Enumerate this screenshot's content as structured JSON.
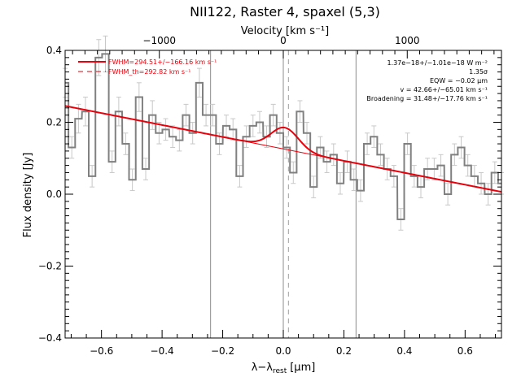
{
  "chart_data": {
    "type": "line",
    "title": "NII122, Raster 4, spaxel (5,3)",
    "xlabel": "λ−λ",
    "xlabel_sub": "rest",
    "xlabel_unit": "[μm]",
    "ylabel": "Flux density [Jy]",
    "top_axis_label": "Velocity [km s⁻¹]",
    "xlim": [
      -0.72,
      0.72
    ],
    "ylim": [
      -0.4,
      0.4
    ],
    "velocity_lim": [
      -1760,
      1760
    ],
    "x_ticks": [
      -0.6,
      -0.4,
      -0.2,
      0.0,
      0.2,
      0.4,
      0.6
    ],
    "x_tick_labels": [
      "−0.6",
      "−0.4",
      "−0.2",
      "0.0",
      "0.2",
      "0.4",
      "0.6"
    ],
    "y_ticks": [
      -0.4,
      -0.2,
      0.0,
      0.2,
      0.4
    ],
    "y_tick_labels": [
      "−0.4",
      "−0.2",
      "0.0",
      "0.2",
      "0.4"
    ],
    "velocity_ticks": [
      -1000,
      0,
      1000
    ],
    "velocity_tick_labels": [
      "−1000",
      "0",
      "1000"
    ],
    "vertical_lines": [
      -0.24,
      0.0,
      0.24
    ],
    "dashed_line": 0.017,
    "bin_width": 0.0222,
    "spectrum_x": [
      -0.72,
      -0.698,
      -0.676,
      -0.653,
      -0.631,
      -0.609,
      -0.587,
      -0.565,
      -0.543,
      -0.52,
      -0.498,
      -0.476,
      -0.454,
      -0.432,
      -0.41,
      -0.388,
      -0.365,
      -0.343,
      -0.321,
      -0.299,
      -0.277,
      -0.255,
      -0.233,
      -0.211,
      -0.188,
      -0.166,
      -0.144,
      -0.122,
      -0.1,
      -0.078,
      -0.055,
      -0.033,
      -0.011,
      0.011,
      0.033,
      0.055,
      0.078,
      0.1,
      0.122,
      0.144,
      0.166,
      0.188,
      0.211,
      0.233,
      0.255,
      0.277,
      0.299,
      0.321,
      0.343,
      0.365,
      0.388,
      0.41,
      0.432,
      0.454,
      0.476,
      0.498,
      0.52,
      0.543,
      0.565,
      0.587,
      0.609,
      0.631,
      0.653,
      0.676,
      0.698,
      0.72
    ],
    "spectrum_y": [
      0.31,
      0.13,
      0.21,
      0.23,
      0.05,
      0.38,
      0.39,
      0.09,
      0.23,
      0.14,
      0.04,
      0.27,
      0.07,
      0.22,
      0.17,
      0.18,
      0.16,
      0.15,
      0.22,
      0.17,
      0.31,
      0.22,
      0.22,
      0.14,
      0.19,
      0.18,
      0.05,
      0.16,
      0.19,
      0.2,
      0.16,
      0.22,
      0.17,
      0.13,
      0.06,
      0.23,
      0.17,
      0.02,
      0.13,
      0.09,
      0.11,
      0.03,
      0.09,
      0.04,
      0.01,
      0.14,
      0.16,
      0.11,
      0.07,
      0.05,
      -0.07,
      0.14,
      0.05,
      0.02,
      0.07,
      0.07,
      0.08,
      0.0,
      0.11,
      0.13,
      0.08,
      0.05,
      0.03,
      0.0,
      0.06,
      0.03
    ],
    "spectrum_err": [
      0.04,
      0.03,
      0.04,
      0.04,
      0.03,
      0.05,
      0.05,
      0.03,
      0.04,
      0.03,
      0.03,
      0.04,
      0.03,
      0.04,
      0.03,
      0.03,
      0.03,
      0.03,
      0.03,
      0.03,
      0.04,
      0.03,
      0.03,
      0.03,
      0.03,
      0.03,
      0.03,
      0.03,
      0.03,
      0.03,
      0.03,
      0.03,
      0.03,
      0.03,
      0.03,
      0.03,
      0.03,
      0.03,
      0.03,
      0.03,
      0.03,
      0.03,
      0.03,
      0.03,
      0.03,
      0.03,
      0.03,
      0.03,
      0.03,
      0.03,
      0.03,
      0.03,
      0.03,
      0.03,
      0.03,
      0.03,
      0.03,
      0.03,
      0.03,
      0.03,
      0.03,
      0.03,
      0.03,
      0.03,
      0.03,
      0.03
    ],
    "continuum": {
      "slope": -0.166,
      "intercept": 0.126
    },
    "gaussian": {
      "center": 0.005,
      "amplitude": 0.06,
      "sigma": 0.045
    },
    "legend": {
      "placement": "top-left",
      "entries": [
        {
          "label": "FWHM=294.51+/−166.16 km s⁻¹",
          "style": "solid",
          "color": "#e8000b"
        },
        {
          "label": "FWHM_th=292.82 km s⁻¹",
          "style": "dashed",
          "color": "#e8000b"
        }
      ]
    },
    "annotations": [
      "1.37e−18+/−1.01e−18 W m⁻²",
      "1.35σ",
      "EQW = −0.02 μm",
      "v = 42.66+/−65.01 km s⁻¹",
      "Broadening = 31.48+/−17.76 km s⁻¹"
    ],
    "colors": {
      "spectrum": "#808080",
      "errorbars": "#c8c8c8",
      "fit": "#e8000b",
      "axes": "#000000"
    }
  }
}
